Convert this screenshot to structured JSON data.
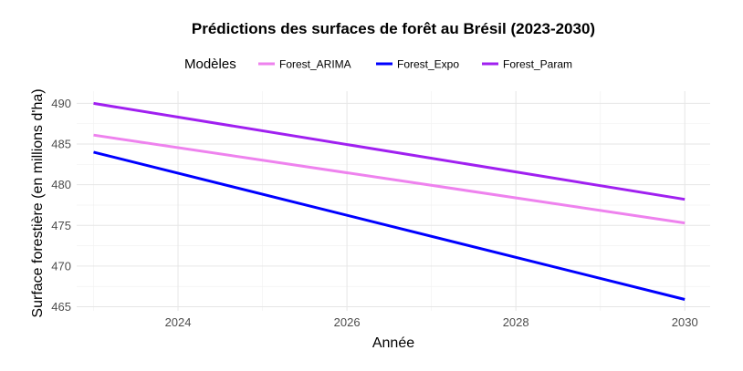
{
  "chart_data": {
    "type": "line",
    "title": "Prédictions des surfaces de forêt au Brésil (2023-2030)",
    "xlabel": "Année",
    "ylabel": "Surface forestière (en millions d'ha)",
    "legend_title": "Modèles",
    "legend_position": "top",
    "grid": true,
    "xlim": [
      2022.8,
      2030.3
    ],
    "ylim": [
      464.5,
      491.5
    ],
    "x_ticks": [
      2024,
      2026,
      2028,
      2030
    ],
    "y_ticks": [
      465,
      470,
      475,
      480,
      485,
      490
    ],
    "series": [
      {
        "name": "Forest_ARIMA",
        "color": "#ee82ee",
        "x": [
          2023,
          2030
        ],
        "values": [
          486.1,
          475.3
        ]
      },
      {
        "name": "Forest_Expo",
        "color": "#0000ff",
        "x": [
          2023,
          2030
        ],
        "values": [
          484.0,
          465.9
        ]
      },
      {
        "name": "Forest_Param",
        "color": "#a020f0",
        "x": [
          2023,
          2030
        ],
        "values": [
          490.0,
          478.2
        ]
      }
    ]
  }
}
